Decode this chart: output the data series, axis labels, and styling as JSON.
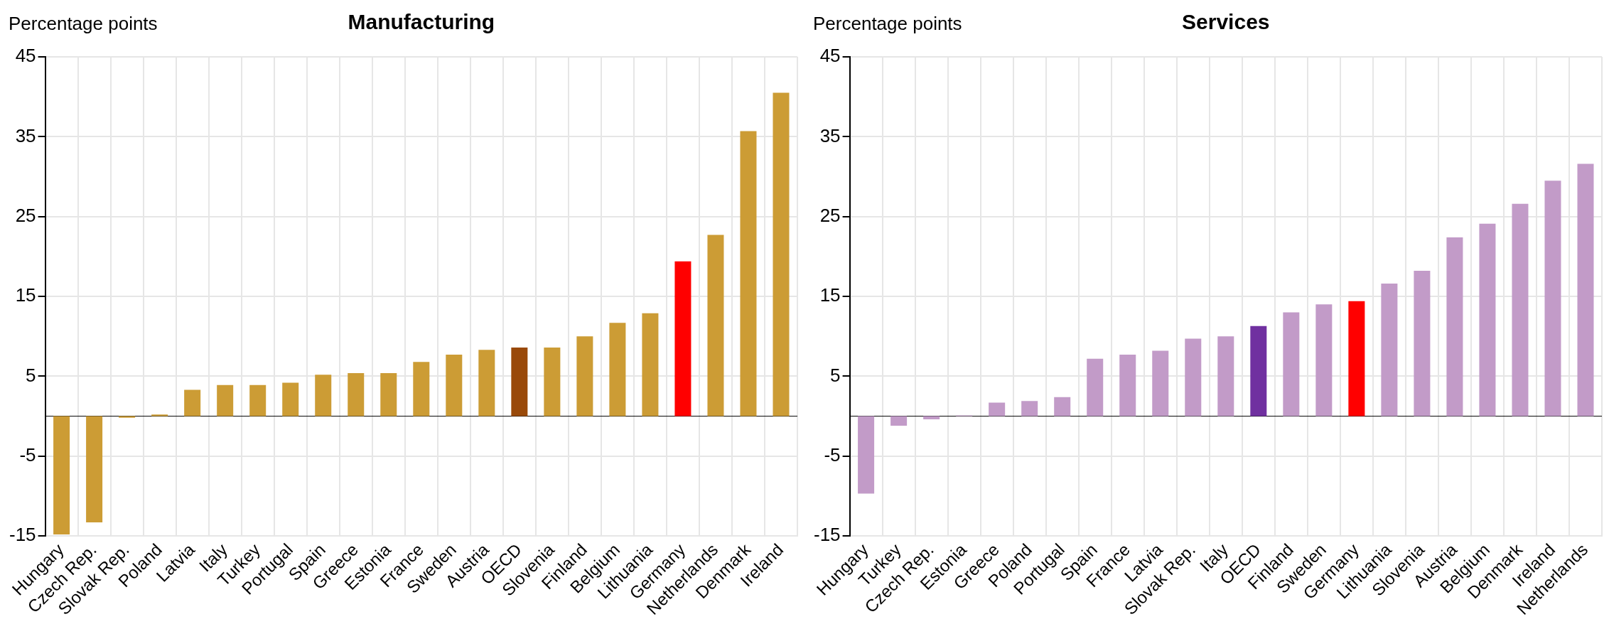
{
  "chart_data": [
    {
      "type": "bar",
      "title": "Manufacturing",
      "ylabel": "Percentage points",
      "categories": [
        "Hungary",
        "Czech Rep.",
        "Slovak Rep.",
        "Poland",
        "Latvia",
        "Italy",
        "Turkey",
        "Portugal",
        "Spain",
        "Greece",
        "Estonia",
        "France",
        "Sweden",
        "Austria",
        "OECD",
        "Slovenia",
        "Finland",
        "Belgium",
        "Lithuania",
        "Germany",
        "Netherlands",
        "Denmark",
        "Ireland"
      ],
      "values": [
        -14.8,
        -13.3,
        -0.2,
        0.2,
        3.3,
        3.9,
        3.9,
        4.2,
        5.2,
        5.4,
        5.4,
        6.8,
        7.7,
        8.3,
        8.6,
        8.6,
        10.0,
        11.7,
        12.9,
        19.4,
        22.7,
        35.7,
        40.5
      ],
      "colors": [
        "#cc9c35",
        "#cc9c35",
        "#cc9c35",
        "#cc9c35",
        "#cc9c35",
        "#cc9c35",
        "#cc9c35",
        "#cc9c35",
        "#cc9c35",
        "#cc9c35",
        "#cc9c35",
        "#cc9c35",
        "#cc9c35",
        "#cc9c35",
        "#994909",
        "#cc9c35",
        "#cc9c35",
        "#cc9c35",
        "#cc9c35",
        "#ff0000",
        "#cc9c35",
        "#cc9c35",
        "#cc9c35"
      ],
      "ylim": [
        -15,
        45
      ],
      "yticks": [
        -15,
        -5,
        5,
        15,
        25,
        35,
        45
      ],
      "grid": true
    },
    {
      "type": "bar",
      "title": "Services",
      "ylabel": "Percentage points",
      "categories": [
        "Hungary",
        "Turkey",
        "Czech Rep.",
        "Estonia",
        "Greece",
        "Poland",
        "Portugal",
        "Spain",
        "France",
        "Latvia",
        "Slovak Rep.",
        "Italy",
        "OECD",
        "Finland",
        "Sweden",
        "Germany",
        "Lithuania",
        "Slovenia",
        "Austria",
        "Belgium",
        "Denmark",
        "Ireland",
        "Netherlands"
      ],
      "values": [
        -9.7,
        -1.2,
        -0.4,
        0.1,
        1.7,
        1.9,
        2.4,
        7.2,
        7.7,
        8.2,
        9.7,
        10.0,
        11.3,
        13.0,
        14.0,
        14.4,
        16.6,
        18.2,
        22.4,
        24.1,
        26.6,
        29.5,
        31.6
      ],
      "colors": [
        "#c29bc8",
        "#c29bc8",
        "#c29bc8",
        "#c29bc8",
        "#c29bc8",
        "#c29bc8",
        "#c29bc8",
        "#c29bc8",
        "#c29bc8",
        "#c29bc8",
        "#c29bc8",
        "#c29bc8",
        "#7030a0",
        "#c29bc8",
        "#c29bc8",
        "#ff0000",
        "#c29bc8",
        "#c29bc8",
        "#c29bc8",
        "#c29bc8",
        "#c29bc8",
        "#c29bc8",
        "#c29bc8"
      ],
      "ylim": [
        -15,
        45
      ],
      "yticks": [
        -15,
        -5,
        5,
        15,
        25,
        35,
        45
      ],
      "grid": true
    }
  ]
}
